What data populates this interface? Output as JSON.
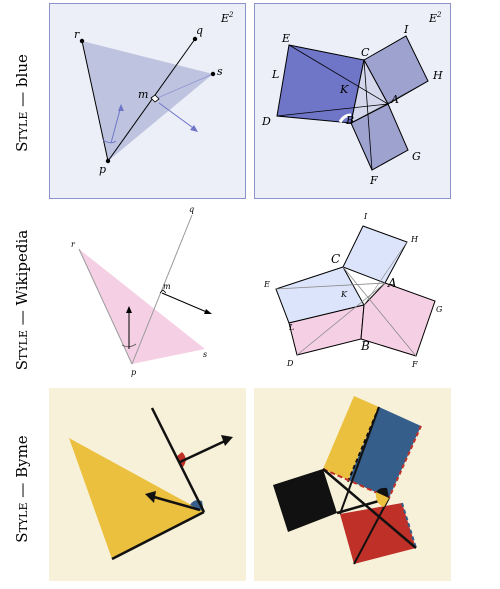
{
  "rows": [
    {
      "style_word": "Style",
      "separator": "—",
      "name": "blue"
    },
    {
      "style_word": "Style",
      "separator": "—",
      "name": "Wikipedia"
    },
    {
      "style_word": "Style",
      "separator": "—",
      "name": "Byme"
    }
  ],
  "space_label": "E",
  "space_exp": "2",
  "labels_bisector": {
    "p": "p",
    "q": "q",
    "r": "r",
    "s": "s",
    "m": "m"
  },
  "labels_pythagoras": {
    "A": "A",
    "B": "B",
    "C": "C",
    "D": "D",
    "E": "E",
    "F": "F",
    "G": "G",
    "H": "H",
    "I": "I",
    "K": "K",
    "L": "L"
  },
  "colors": {
    "blue_bg": "#eceef8",
    "blue_border": "#8b93c8",
    "blue_fill": "#b9bfdc",
    "blue_dark": "#6f76c8",
    "wiki_pink": "#f5d0e4",
    "wiki_blue": "#dce4fb",
    "byme_bg": "#f7f1d9",
    "byme_yellow": "#ecc03f",
    "byme_red": "#bf3028",
    "byme_blue": "#355e8b",
    "byme_black": "#111111"
  }
}
